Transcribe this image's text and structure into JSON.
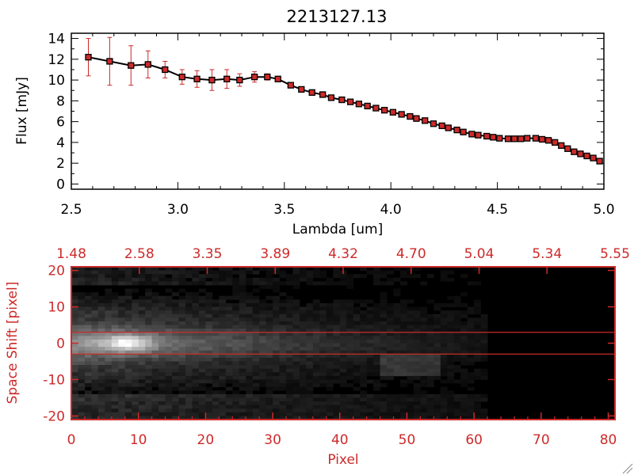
{
  "title": "2213127.13",
  "colors": {
    "axis": "#000000",
    "red": "#cc2a2a",
    "line": "#000000",
    "marker": "#cc2a2a"
  },
  "chart_data": [
    {
      "type": "line",
      "title": "2213127.13",
      "xlabel": "Lambda [um]",
      "ylabel": "Flux [mJy]",
      "xlim": [
        2.5,
        5.0
      ],
      "ylim": [
        -0.5,
        14.5
      ],
      "xticks": [
        "2.5",
        "3.0",
        "3.5",
        "4.0",
        "4.5",
        "5.0"
      ],
      "yticks": [
        "0",
        "2",
        "4",
        "6",
        "8",
        "10",
        "12",
        "14"
      ],
      "grid": false,
      "x": [
        2.58,
        2.68,
        2.78,
        2.86,
        2.94,
        3.02,
        3.09,
        3.16,
        3.23,
        3.29,
        3.36,
        3.42,
        3.47,
        3.53,
        3.58,
        3.63,
        3.68,
        3.72,
        3.77,
        3.81,
        3.85,
        3.89,
        3.93,
        3.97,
        4.01,
        4.05,
        4.09,
        4.12,
        4.16,
        4.2,
        4.24,
        4.27,
        4.31,
        4.34,
        4.38,
        4.41,
        4.45,
        4.48,
        4.51,
        4.55,
        4.58,
        4.61,
        4.64,
        4.68,
        4.71,
        4.74,
        4.77,
        4.8,
        4.83,
        4.86,
        4.89,
        4.92,
        4.95,
        4.98
      ],
      "y": [
        12.2,
        11.8,
        11.4,
        11.5,
        11.0,
        10.3,
        10.1,
        10.0,
        10.1,
        10.0,
        10.3,
        10.3,
        10.1,
        9.5,
        9.1,
        8.8,
        8.6,
        8.3,
        8.1,
        7.9,
        7.7,
        7.5,
        7.3,
        7.1,
        6.9,
        6.7,
        6.5,
        6.3,
        6.1,
        5.8,
        5.6,
        5.4,
        5.2,
        5.0,
        4.8,
        4.7,
        4.6,
        4.5,
        4.4,
        4.35,
        4.35,
        4.35,
        4.4,
        4.4,
        4.3,
        4.2,
        4.0,
        3.7,
        3.4,
        3.1,
        2.9,
        2.7,
        2.5,
        2.2
      ],
      "yerr": [
        1.8,
        2.3,
        1.9,
        1.3,
        0.8,
        0.7,
        0.8,
        1.0,
        0.9,
        0.6,
        0.5,
        0.3,
        0.25,
        0.25,
        0.2,
        0.2,
        0.2,
        0.2,
        0.2,
        0.15,
        0.15,
        0.15,
        0.15,
        0.15,
        0.15,
        0.15,
        0.15,
        0.15,
        0.15,
        0.15,
        0.15,
        0.15,
        0.15,
        0.15,
        0.15,
        0.15,
        0.15,
        0.15,
        0.15,
        0.15,
        0.15,
        0.15,
        0.15,
        0.15,
        0.15,
        0.2,
        0.2,
        0.2,
        0.2,
        0.2,
        0.2,
        0.2,
        0.2,
        0.25
      ]
    },
    {
      "type": "heatmap",
      "xlabel": "Pixel",
      "ylabel": "Space Shift [pixel]",
      "xlim": [
        0,
        81
      ],
      "ylim": [
        -21,
        21
      ],
      "xticks": [
        "0",
        "10",
        "20",
        "30",
        "40",
        "50",
        "60",
        "70",
        "80"
      ],
      "yticks": [
        "-20",
        "-10",
        "0",
        "10",
        "20"
      ],
      "top_axis_ticks": [
        "1.48",
        "2.58",
        "3.35",
        "3.89",
        "4.32",
        "4.70",
        "5.04",
        "5.34",
        "5.55"
      ],
      "extraction_window": [
        -3,
        3
      ],
      "data_extent_pixel": 62,
      "colormap": "grayscale"
    }
  ]
}
